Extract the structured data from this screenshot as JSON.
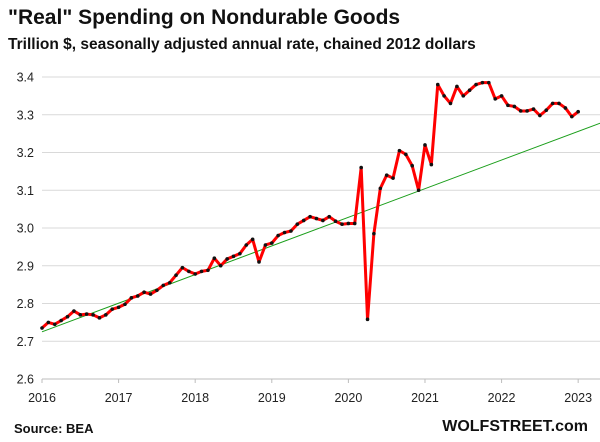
{
  "title": "\"Real\" Spending on Nondurable Goods",
  "subtitle": "Trillion $, seasonally adjusted annual rate, chained 2012 dollars",
  "source": "Source: BEA",
  "brand": "WOLFSTREET.com",
  "colors": {
    "series": "#ff0000",
    "markers": "#111111",
    "trend": "#1a9e1a",
    "grid": "#d9d9d9"
  },
  "chart_data": {
    "type": "line",
    "title": "\"Real\" Spending on Nondurable Goods",
    "ylabel": "Trillion $, seasonally adjusted annual rate, chained 2012 dollars",
    "xlabel": "",
    "xlim": [
      2016,
      2023.05
    ],
    "ylim": [
      2.6,
      3.4
    ],
    "x_ticks": [
      "2016",
      "2017",
      "2018",
      "2019",
      "2020",
      "2021",
      "2022",
      "2023"
    ],
    "y_ticks": [
      "2.6",
      "2.7",
      "2.8",
      "2.9",
      "3.0",
      "3.1",
      "3.2",
      "3.3",
      "3.4"
    ],
    "grid": true,
    "series": [
      {
        "x": [
          2016.0,
          2016.083,
          2016.167,
          2016.25,
          2016.333,
          2016.417,
          2016.5,
          2016.583,
          2016.667,
          2016.75,
          2016.833,
          2016.917,
          2017.0,
          2017.083,
          2017.167,
          2017.25,
          2017.333,
          2017.417,
          2017.5,
          2017.583,
          2017.667,
          2017.75,
          2017.833,
          2017.917,
          2018.0,
          2018.083,
          2018.167,
          2018.25,
          2018.333,
          2018.417,
          2018.5,
          2018.583,
          2018.667,
          2018.75,
          2018.833,
          2018.917,
          2019.0,
          2019.083,
          2019.167,
          2019.25,
          2019.333,
          2019.417,
          2019.5,
          2019.583,
          2019.667,
          2019.75,
          2019.833,
          2019.917,
          2020.0,
          2020.083,
          2020.167,
          2020.25,
          2020.333,
          2020.417,
          2020.5,
          2020.583,
          2020.667,
          2020.75,
          2020.833,
          2020.917,
          2021.0,
          2021.083,
          2021.167,
          2021.25,
          2021.333,
          2021.417,
          2021.5,
          2021.583,
          2021.667,
          2021.75,
          2021.833,
          2021.917,
          2022.0,
          2022.083,
          2022.167,
          2022.25,
          2022.333,
          2022.417,
          2022.5,
          2022.583,
          2022.667,
          2022.75,
          2022.833,
          2022.917,
          2023.0
        ],
        "values": [
          2.735,
          2.75,
          2.745,
          2.755,
          2.765,
          2.78,
          2.77,
          2.772,
          2.77,
          2.762,
          2.77,
          2.785,
          2.79,
          2.798,
          2.815,
          2.82,
          2.83,
          2.825,
          2.835,
          2.848,
          2.855,
          2.875,
          2.895,
          2.885,
          2.878,
          2.885,
          2.888,
          2.92,
          2.9,
          2.918,
          2.925,
          2.932,
          2.955,
          2.97,
          2.91,
          2.955,
          2.96,
          2.98,
          2.988,
          2.992,
          3.01,
          3.02,
          3.03,
          3.025,
          3.02,
          3.03,
          3.018,
          3.01,
          3.012,
          3.012,
          3.16,
          2.758,
          2.985,
          3.105,
          3.14,
          3.132,
          3.205,
          3.195,
          3.165,
          3.1,
          3.22,
          3.168,
          3.38,
          3.35,
          3.33,
          3.375,
          3.35,
          3.365,
          3.38,
          3.385,
          3.385,
          3.342,
          3.35,
          3.325,
          3.322,
          3.31,
          3.31,
          3.315,
          3.298,
          3.312,
          3.33,
          3.33,
          3.318,
          3.295,
          3.308
        ]
      }
    ],
    "trendline": {
      "x": [
        2016.0,
        2023.45
      ],
      "values": [
        2.725,
        3.29
      ]
    }
  }
}
